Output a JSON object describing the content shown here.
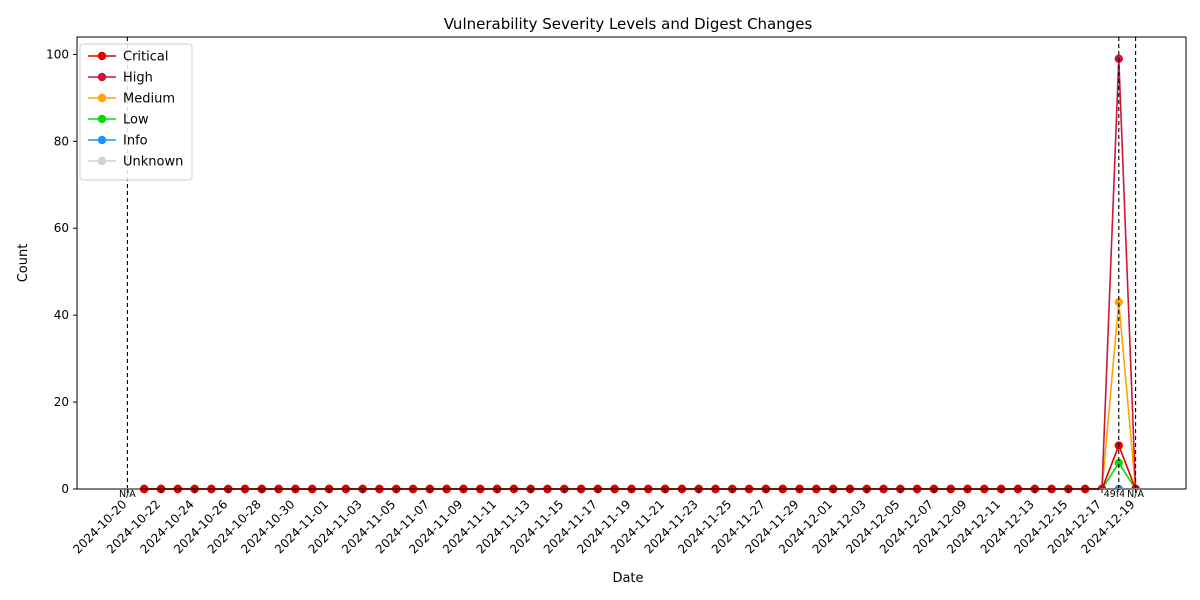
{
  "chart_data": {
    "type": "line",
    "title": "Vulnerability Severity Levels and Digest Changes",
    "xlabel": "Date",
    "ylabel": "Count",
    "x_start": "2024-10-20",
    "x_tick_labels": [
      "2024-10-20",
      "2024-10-22",
      "2024-10-24",
      "2024-10-26",
      "2024-10-28",
      "2024-10-30",
      "2024-11-01",
      "2024-11-03",
      "2024-11-05",
      "2024-11-07",
      "2024-11-09",
      "2024-11-11",
      "2024-11-13",
      "2024-11-15",
      "2024-11-17",
      "2024-11-19",
      "2024-11-21",
      "2024-11-23",
      "2024-11-25",
      "2024-11-27",
      "2024-11-29",
      "2024-12-01",
      "2024-12-03",
      "2024-12-05",
      "2024-12-07",
      "2024-12-09",
      "2024-12-11",
      "2024-12-13",
      "2024-12-15",
      "2024-12-17",
      "2024-12-19"
    ],
    "ylim": [
      0,
      104
    ],
    "y_ticks": [
      0,
      20,
      40,
      60,
      80,
      100
    ],
    "grid": false,
    "legend_position": "upper-left",
    "series": [
      {
        "name": "Critical",
        "color": "#e00000",
        "spike": {
          "2024-12-18": 10
        }
      },
      {
        "name": "High",
        "color": "#d0153a",
        "spike": {
          "2024-12-18": 99
        }
      },
      {
        "name": "Medium",
        "color": "#ffa500",
        "spike": {
          "2024-12-18": 43
        }
      },
      {
        "name": "Low",
        "color": "#00e000",
        "spike": {
          "2024-12-18": 6
        }
      },
      {
        "name": "Info",
        "color": "#1e90ff",
        "spike": {}
      },
      {
        "name": "Unknown",
        "color": "#d3d3d3",
        "spike": {}
      }
    ],
    "x_end": "2024-12-19",
    "annotations": [
      {
        "date": "2024-10-20",
        "label": "N/A"
      },
      {
        "date": "2024-12-18",
        "label": "49f4fc"
      },
      {
        "date": "2024-12-19",
        "label": "N/A"
      }
    ]
  }
}
